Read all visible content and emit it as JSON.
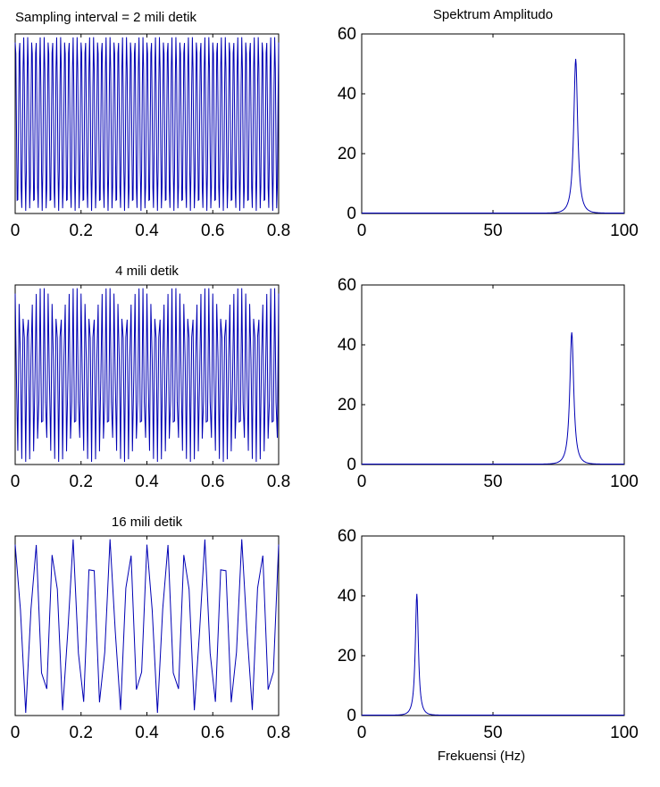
{
  "chart_data": [
    {
      "type": "line",
      "title": "Sampling interval = 2 mili detik",
      "xlabel": "",
      "ylabel": "",
      "xlim": [
        0,
        0.8
      ],
      "xticks": [
        "0",
        "0.2",
        "0.4",
        "0.6",
        "0.8"
      ],
      "ylim": [
        -1,
        1
      ],
      "signal": {
        "frequency_hz": 80,
        "amplitude": 1,
        "sampling_interval_s": 0.002,
        "duration_s": 0.8
      }
    },
    {
      "type": "line",
      "title": "Spektrum Amplitudo",
      "xlabel": "",
      "ylabel": "",
      "xlim": [
        0,
        100
      ],
      "ylim": [
        0,
        60
      ],
      "xticks": [
        "0",
        "50",
        "100"
      ],
      "yticks": [
        "0",
        "20",
        "40",
        "60"
      ],
      "peak": {
        "x": 81.5,
        "y": 51.5,
        "width_hz": 1.8
      }
    },
    {
      "type": "line",
      "title": "4 mili detik",
      "xlabel": "",
      "ylabel": "",
      "xlim": [
        0,
        0.8
      ],
      "xticks": [
        "0",
        "0.2",
        "0.4",
        "0.6",
        "0.8"
      ],
      "ylim": [
        -1,
        1
      ],
      "signal": {
        "frequency_hz": 80,
        "amplitude": 1,
        "sampling_interval_s": 0.004,
        "duration_s": 0.8
      }
    },
    {
      "type": "line",
      "title": "",
      "xlabel": "",
      "ylabel": "",
      "xlim": [
        0,
        100
      ],
      "ylim": [
        0,
        60
      ],
      "xticks": [
        "0",
        "50",
        "100"
      ],
      "yticks": [
        "0",
        "20",
        "40",
        "60"
      ],
      "peak": {
        "x": 80,
        "y": 44,
        "width_hz": 1.8
      }
    },
    {
      "type": "line",
      "title": "16 mili detik",
      "xlabel": "",
      "ylabel": "",
      "xlim": [
        0,
        0.8
      ],
      "xticks": [
        "0",
        "0.2",
        "0.4",
        "0.6",
        "0.8"
      ],
      "ylim": [
        -1,
        1
      ],
      "signal": {
        "frequency_hz": 80,
        "amplitude": 1,
        "sampling_interval_s": 0.016,
        "duration_s": 0.8
      }
    },
    {
      "type": "line",
      "title": "",
      "xlabel": "Frekuensi (Hz)",
      "ylabel": "",
      "xlim": [
        0,
        100
      ],
      "ylim": [
        0,
        60
      ],
      "xticks": [
        "0",
        "50",
        "100"
      ],
      "yticks": [
        "0",
        "20",
        "40",
        "60"
      ],
      "peak": {
        "x": 21,
        "y": 40.5,
        "width_hz": 1.4
      }
    }
  ],
  "colors": {
    "trace": "#0000b4",
    "axes": "#000000",
    "background": "#ffffff"
  }
}
